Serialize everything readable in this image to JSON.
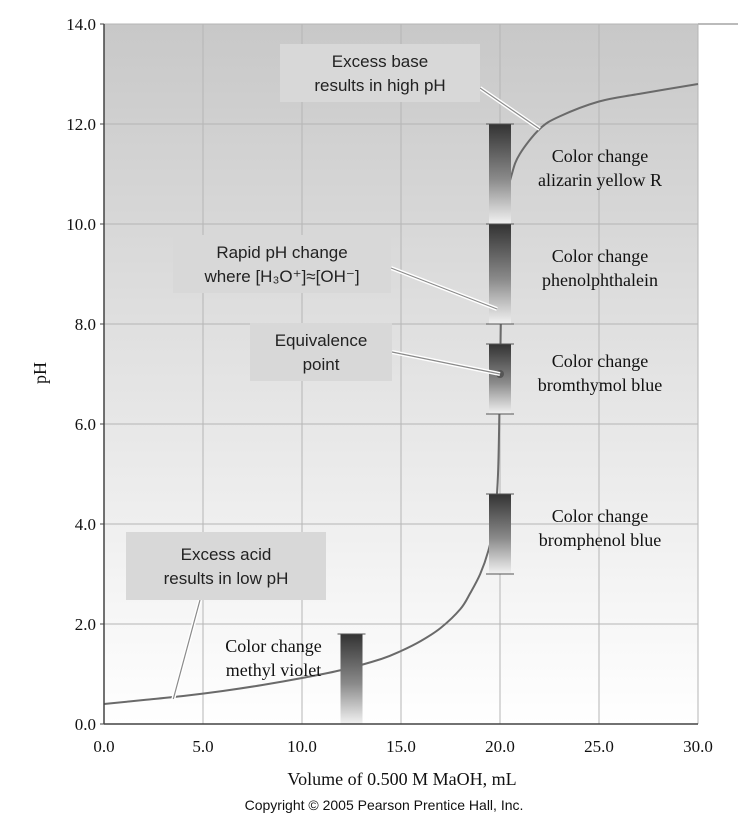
{
  "chart_data": {
    "type": "line",
    "xlabel": "Volume of 0.500 M MaOH, mL",
    "ylabel": "pH",
    "xlim": [
      0,
      30
    ],
    "ylim": [
      0,
      14
    ],
    "x_ticks": [
      "0.0",
      "5.0",
      "10.0",
      "15.0",
      "20.0",
      "25.0",
      "30.0"
    ],
    "y_ticks": [
      "0.0",
      "2.0",
      "4.0",
      "6.0",
      "8.0",
      "10.0",
      "12.0",
      "14.0"
    ],
    "grid": true,
    "series": [
      {
        "x": [
          0,
          2,
          4,
          6,
          8,
          10,
          12,
          14,
          15,
          16,
          17,
          18,
          18.5,
          19,
          19.4,
          19.7,
          19.9,
          20.0,
          20.1,
          20.3,
          20.6,
          21,
          22,
          23,
          25,
          27,
          30
        ],
        "y": [
          0.4,
          0.48,
          0.56,
          0.66,
          0.78,
          0.92,
          1.08,
          1.3,
          1.46,
          1.66,
          1.92,
          2.3,
          2.62,
          3.0,
          3.45,
          4.0,
          5.0,
          7.0,
          9.0,
          10.4,
          11.0,
          11.4,
          11.9,
          12.15,
          12.45,
          12.6,
          12.8
        ]
      }
    ],
    "indicators": [
      {
        "label": [
          "Color change",
          "alizarin yellow R"
        ],
        "ph_range": [
          10.0,
          12.0
        ],
        "x": 20.0
      },
      {
        "label": [
          "Color change",
          "phenolphthalein"
        ],
        "ph_range": [
          8.0,
          10.0
        ],
        "x": 20.0
      },
      {
        "label": [
          "Color change",
          "bromthymol blue"
        ],
        "ph_range": [
          6.2,
          7.6
        ],
        "x": 20.0
      },
      {
        "label": [
          "Color change",
          "bromphenol blue"
        ],
        "ph_range": [
          3.0,
          4.6
        ],
        "x": 20.0
      },
      {
        "label": [
          "Color change",
          "methyl violet"
        ],
        "ph_range": [
          0.0,
          1.8
        ],
        "x": 12.5
      }
    ],
    "callouts": [
      {
        "text": [
          "Excess base",
          "results in high pH"
        ],
        "target": [
          22.0,
          11.9
        ]
      },
      {
        "text": [
          "Rapid pH change",
          "where [H₃O⁺]≈[OH⁻]"
        ],
        "target": [
          19.85,
          8.3
        ]
      },
      {
        "text": [
          "Equivalence",
          "point"
        ],
        "target": [
          20.0,
          7.0
        ]
      },
      {
        "text": [
          "Excess acid",
          "results in low pH"
        ],
        "target": [
          3.5,
          0.5
        ]
      }
    ],
    "equivalence_point": {
      "x": 20.0,
      "y": 7.0
    }
  },
  "footer": {
    "copyright": "Copyright © 2005 Pearson Prentice Hall, Inc."
  }
}
